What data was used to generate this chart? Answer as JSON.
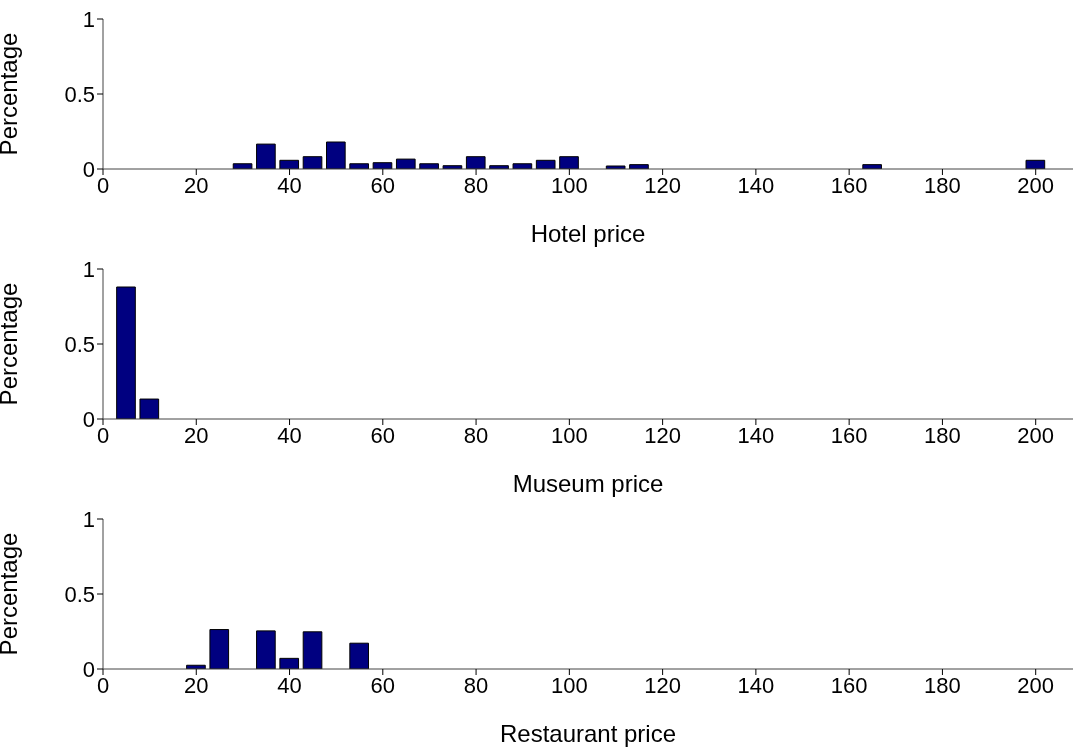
{
  "chart_data": [
    {
      "type": "bar",
      "xlabel": "Hotel price",
      "ylabel": "Percentage",
      "color": "#000080",
      "x": [
        30,
        35,
        40,
        45,
        50,
        55,
        60,
        65,
        70,
        75,
        80,
        85,
        90,
        95,
        100,
        110,
        115,
        165,
        200
      ],
      "values": [
        0.035,
        0.166,
        0.058,
        0.082,
        0.18,
        0.035,
        0.042,
        0.066,
        0.035,
        0.022,
        0.082,
        0.022,
        0.035,
        0.058,
        0.082,
        0.02,
        0.029,
        0.029,
        0.058
      ],
      "xlim": [
        0,
        208
      ],
      "xticks": [
        0,
        20,
        40,
        60,
        80,
        100,
        120,
        140,
        160,
        180,
        200
      ],
      "ylim": [
        0,
        1
      ],
      "yticks": [
        0,
        0.5,
        1
      ]
    },
    {
      "type": "bar",
      "xlabel": "Museum price",
      "ylabel": "Percentage",
      "color": "#000080",
      "x": [
        5,
        10
      ],
      "values": [
        0.88,
        0.133
      ],
      "xlim": [
        0,
        208
      ],
      "xticks": [
        0,
        20,
        40,
        60,
        80,
        100,
        120,
        140,
        160,
        180,
        200
      ],
      "ylim": [
        0,
        1
      ],
      "yticks": [
        0,
        0.5,
        1
      ]
    },
    {
      "type": "bar",
      "xlabel": "Restaurant price",
      "ylabel": "Percentage",
      "color": "#000080",
      "x": [
        20,
        25,
        35,
        40,
        45,
        55
      ],
      "values": [
        0.025,
        0.263,
        0.254,
        0.071,
        0.248,
        0.172
      ],
      "xlim": [
        0,
        208
      ],
      "xticks": [
        0,
        20,
        40,
        60,
        80,
        100,
        120,
        140,
        160,
        180,
        200
      ],
      "ylim": [
        0,
        1
      ],
      "yticks": [
        0,
        0.5,
        1
      ]
    }
  ]
}
